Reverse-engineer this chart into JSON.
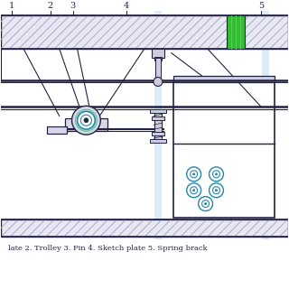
{
  "bg_color": "white",
  "hatch_color": "#aaaacc",
  "line_color": "#222244",
  "green_color": "#33bb33",
  "teal_color": "#2288aa",
  "light_teal": "#88cccc",
  "caption": "late 2. Trolley 3. Pin 4. Sketch plate 5. Spring brack",
  "numbers": [
    "1",
    "2",
    "3",
    "4",
    "5"
  ],
  "figsize": [
    3.2,
    3.2
  ],
  "dpi": 100
}
